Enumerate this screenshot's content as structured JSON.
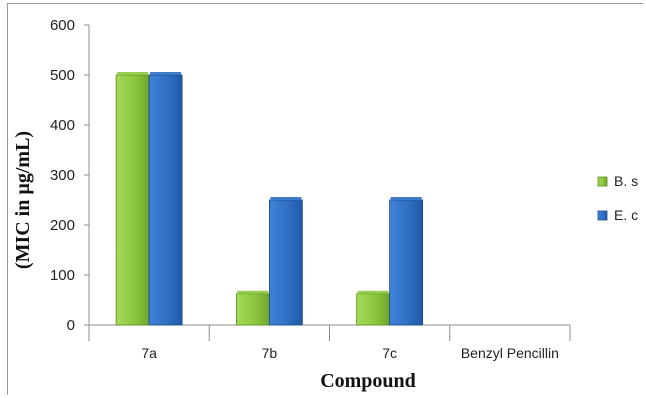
{
  "chart_data": {
    "type": "bar",
    "categories": [
      "7a",
      "7b",
      "7c",
      "Benzyl Pencillin"
    ],
    "series": [
      {
        "name": "B. s",
        "values": [
          500,
          62.5,
          62.5,
          0
        ],
        "color": "#8dc63f",
        "edge": "#5e8f22"
      },
      {
        "name": "E. c",
        "values": [
          500,
          250,
          250,
          0
        ],
        "color": "#2f6fc4",
        "edge": "#1c4a8a"
      }
    ],
    "title": "",
    "xlabel": "Compound",
    "ylabel": "(MIC in µg/mL)",
    "ylim": [
      0,
      600
    ],
    "yticks": [
      0,
      100,
      200,
      300,
      400,
      500,
      600
    ],
    "grid": false,
    "legend_position": "right"
  }
}
